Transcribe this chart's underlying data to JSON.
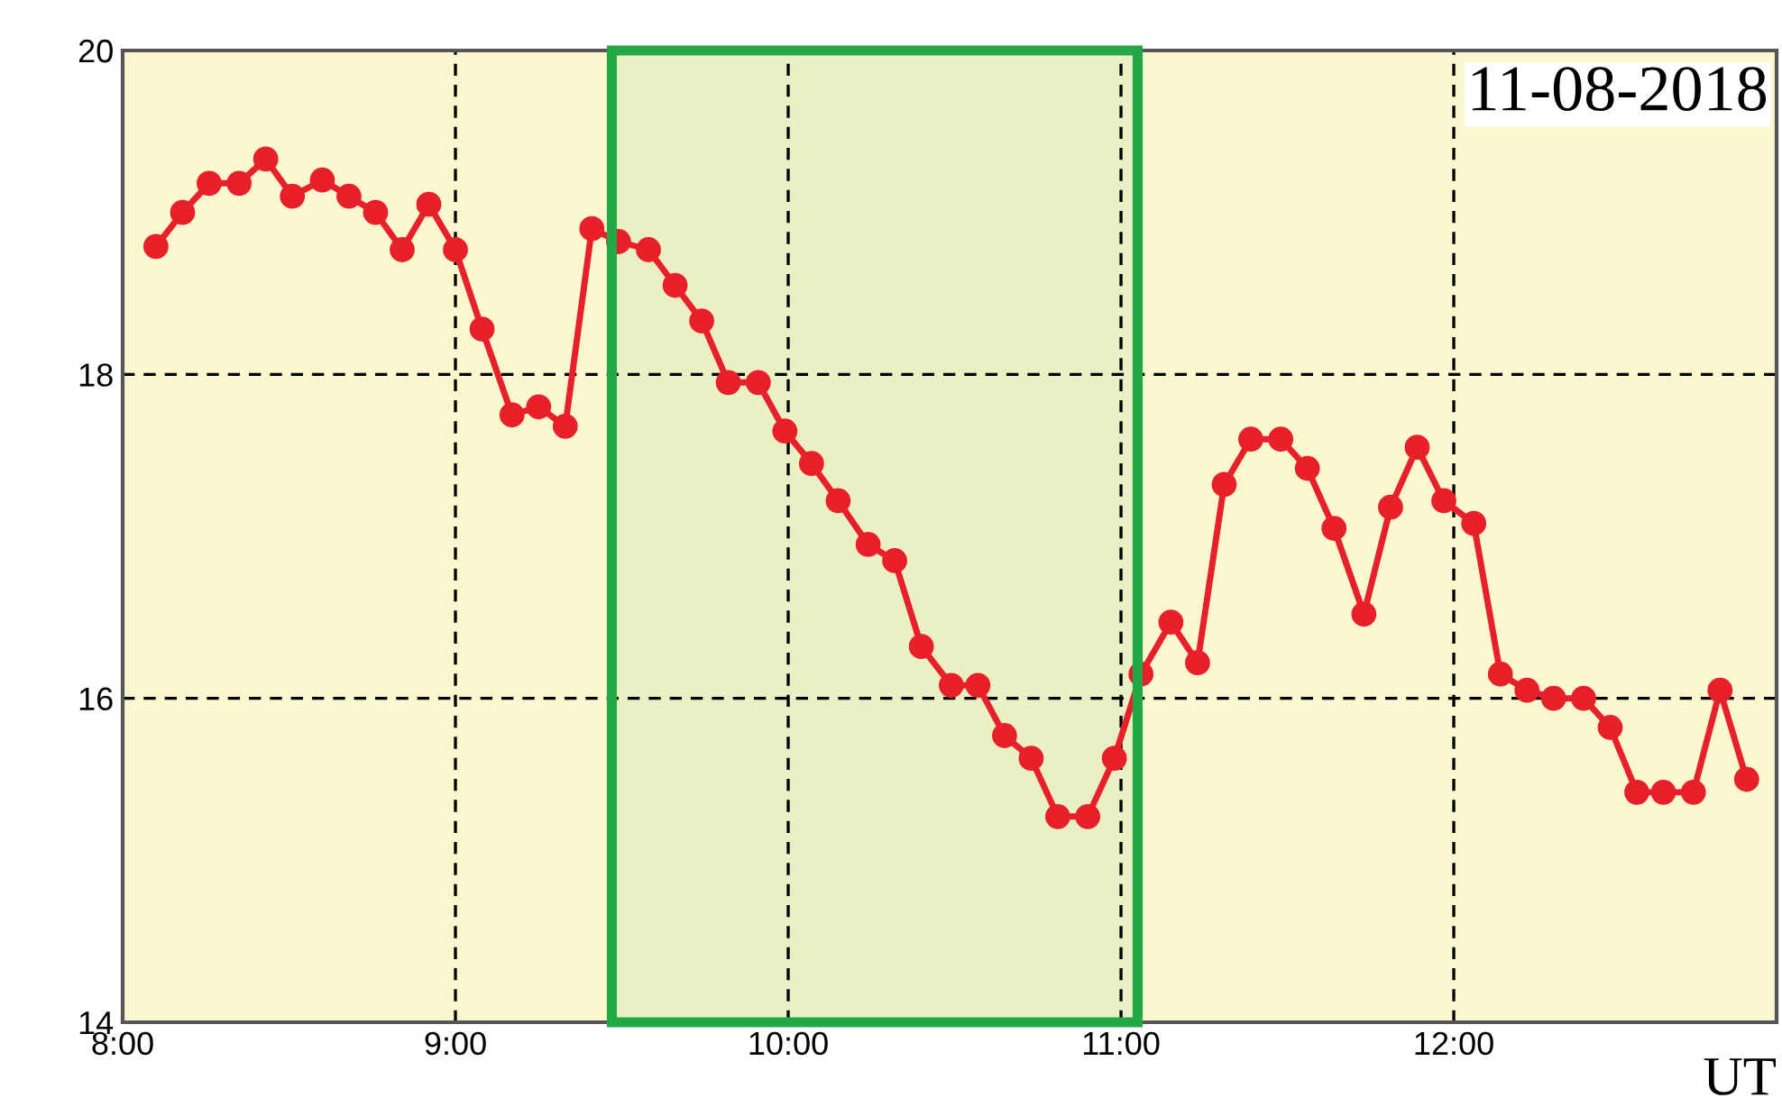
{
  "chart_data": {
    "type": "line",
    "xlabel": "UT",
    "annotations": [
      "11-08-2018"
    ],
    "x": [
      8.1,
      8.18,
      8.26,
      8.35,
      8.43,
      8.51,
      8.6,
      8.68,
      8.76,
      8.84,
      8.92,
      9.0,
      9.08,
      9.17,
      9.25,
      9.33,
      9.41,
      9.49,
      9.58,
      9.66,
      9.74,
      9.82,
      9.91,
      9.99,
      10.07,
      10.15,
      10.24,
      10.32,
      10.4,
      10.49,
      10.57,
      10.65,
      10.73,
      10.81,
      10.9,
      10.98,
      11.06,
      11.15,
      11.23,
      11.31,
      11.39,
      11.48,
      11.56,
      11.64,
      11.73,
      11.81,
      11.89,
      11.97,
      12.06,
      12.14,
      12.22,
      12.3,
      12.39,
      12.47,
      12.55,
      12.63,
      12.72,
      12.8,
      12.88
    ],
    "series": [
      {
        "color": "#e8202a",
        "values": [
          18.79,
          19.0,
          19.18,
          19.18,
          19.33,
          19.1,
          19.2,
          19.1,
          19.0,
          18.77,
          19.05,
          18.77,
          18.28,
          17.75,
          17.8,
          17.68,
          18.9,
          18.82,
          18.77,
          18.55,
          18.33,
          17.95,
          17.95,
          17.65,
          17.45,
          17.22,
          16.95,
          16.85,
          16.32,
          16.08,
          16.08,
          15.77,
          15.63,
          15.27,
          15.27,
          15.63,
          16.15,
          16.47,
          16.22,
          17.32,
          17.6,
          17.6,
          17.42,
          17.05,
          16.52,
          17.18,
          17.55,
          17.22,
          17.08,
          16.15,
          16.05,
          16.0,
          16.0,
          15.82,
          15.42,
          15.42,
          15.42,
          16.05,
          15.5
        ]
      }
    ],
    "xlim": [
      8.0,
      12.97
    ],
    "ylim": [
      14,
      20
    ],
    "xticks": [
      {
        "value": 8,
        "label": "8:00"
      },
      {
        "value": 9,
        "label": "9:00"
      },
      {
        "value": 10,
        "label": "10:00"
      },
      {
        "value": 11,
        "label": "11:00"
      },
      {
        "value": 12,
        "label": "12:00"
      }
    ],
    "yticks": [
      14,
      16,
      18,
      20
    ],
    "bands": [
      {
        "axis": "x",
        "from": 9.47,
        "to": 11.05,
        "color": "#22a845"
      }
    ],
    "grid": true,
    "marker": "circle",
    "line_style": "solid",
    "legend": false
  }
}
